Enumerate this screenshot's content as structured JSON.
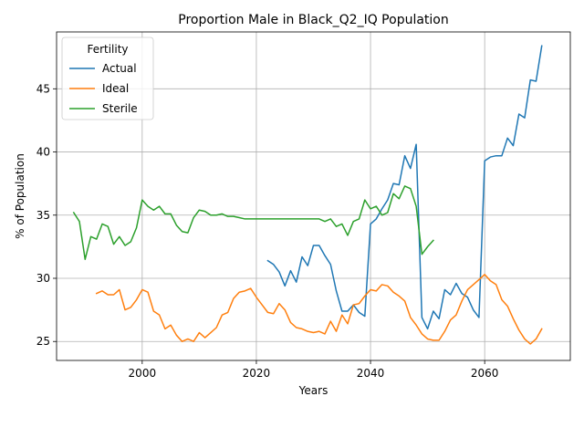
{
  "chart_data": {
    "type": "line",
    "title": "Proportion Male in Black_Q2_IQ Population",
    "xlabel": "Years",
    "ylabel": "% of Population",
    "xlim": [
      1985,
      2075
    ],
    "ylim": [
      23.5,
      49.5
    ],
    "xticks": [
      2000,
      2020,
      2040,
      2060
    ],
    "yticks": [
      25,
      30,
      35,
      40,
      45
    ],
    "grid": true,
    "legend": {
      "title": "Fertility",
      "position": "top-left"
    },
    "series": [
      {
        "name": "Actual",
        "color": "#1f77b4",
        "x": [
          2022,
          2023,
          2024,
          2025,
          2026,
          2027,
          2028,
          2029,
          2030,
          2031,
          2032,
          2033,
          2034,
          2035,
          2036,
          2037,
          2038,
          2039,
          2040,
          2041,
          2042,
          2043,
          2044,
          2045,
          2046,
          2047,
          2048,
          2049,
          2050,
          2051,
          2052,
          2053,
          2054,
          2055,
          2056,
          2057,
          2058,
          2059,
          2060,
          2061,
          2062,
          2063,
          2064,
          2065,
          2066,
          2067,
          2068,
          2069,
          2070
        ],
        "y": [
          31.4,
          31.1,
          30.5,
          29.4,
          30.6,
          29.7,
          31.7,
          31.0,
          32.6,
          32.6,
          31.8,
          31.1,
          29.0,
          27.4,
          27.4,
          27.9,
          27.3,
          27.0,
          34.3,
          34.7,
          35.5,
          36.2,
          37.5,
          37.4,
          39.7,
          38.7,
          40.6,
          26.9,
          26.0,
          27.4,
          26.8,
          29.1,
          28.7,
          29.6,
          28.8,
          28.5,
          27.5,
          26.9,
          39.3,
          39.6,
          39.7,
          39.7,
          41.1,
          40.5,
          43.0,
          42.7,
          45.7,
          45.6,
          48.4
        ]
      },
      {
        "name": "Ideal",
        "color": "#ff7f0e",
        "x": [
          1992,
          1993,
          1994,
          1995,
          1996,
          1997,
          1998,
          1999,
          2000,
          2001,
          2002,
          2003,
          2004,
          2005,
          2006,
          2007,
          2008,
          2009,
          2010,
          2011,
          2012,
          2013,
          2014,
          2015,
          2016,
          2017,
          2018,
          2019,
          2020,
          2021,
          2022,
          2023,
          2024,
          2025,
          2026,
          2027,
          2028,
          2029,
          2030,
          2031,
          2032,
          2033,
          2034,
          2035,
          2036,
          2037,
          2038,
          2039,
          2040,
          2041,
          2042,
          2043,
          2044,
          2045,
          2046,
          2047,
          2048,
          2049,
          2050,
          2051,
          2052,
          2053,
          2054,
          2055,
          2056,
          2057,
          2058,
          2059,
          2060,
          2061,
          2062,
          2063,
          2064,
          2065,
          2066,
          2067,
          2068,
          2069,
          2070
        ],
        "y": [
          28.8,
          29.0,
          28.7,
          28.7,
          29.1,
          27.5,
          27.7,
          28.3,
          29.1,
          28.9,
          27.4,
          27.1,
          26.0,
          26.3,
          25.5,
          25.0,
          25.2,
          25.0,
          25.7,
          25.3,
          25.7,
          26.1,
          27.1,
          27.3,
          28.4,
          28.9,
          29.0,
          29.2,
          28.5,
          27.9,
          27.3,
          27.2,
          28.0,
          27.5,
          26.5,
          26.1,
          26.0,
          25.8,
          25.7,
          25.8,
          25.6,
          26.6,
          25.8,
          27.1,
          26.4,
          27.9,
          28.0,
          28.6,
          29.1,
          29.0,
          29.5,
          29.4,
          28.9,
          28.6,
          28.2,
          26.9,
          26.3,
          25.6,
          25.2,
          25.1,
          25.1,
          25.8,
          26.7,
          27.1,
          28.2,
          29.1,
          29.5,
          29.9,
          30.3,
          29.8,
          29.5,
          28.3,
          27.8,
          26.8,
          25.9,
          25.2,
          24.8,
          25.2,
          26.0
        ]
      },
      {
        "name": "Sterile",
        "color": "#2ca02c",
        "x": [
          1988,
          1989,
          1990,
          1991,
          1992,
          1993,
          1994,
          1995,
          1996,
          1997,
          1998,
          1999,
          2000,
          2001,
          2002,
          2003,
          2004,
          2005,
          2006,
          2007,
          2008,
          2009,
          2010,
          2011,
          2012,
          2013,
          2014,
          2015,
          2016,
          2017,
          2018,
          2019,
          2020,
          2021,
          2022,
          2023,
          2024,
          2025,
          2026,
          2027,
          2028,
          2029,
          2030,
          2031,
          2032,
          2033,
          2034,
          2035,
          2036,
          2037,
          2038,
          2039,
          2040,
          2041,
          2042,
          2043,
          2044,
          2045,
          2046,
          2047,
          2048,
          2049,
          2050,
          2051
        ],
        "y": [
          35.2,
          34.5,
          31.5,
          33.3,
          33.1,
          34.3,
          34.1,
          32.7,
          33.3,
          32.6,
          32.9,
          34.0,
          36.2,
          35.7,
          35.4,
          35.7,
          35.1,
          35.1,
          34.2,
          33.7,
          33.6,
          34.8,
          35.4,
          35.3,
          35.0,
          35.0,
          35.1,
          34.9,
          34.9,
          34.8,
          34.7,
          34.7,
          34.7,
          34.7,
          34.7,
          34.7,
          34.7,
          34.7,
          34.7,
          34.7,
          34.7,
          34.7,
          34.7,
          34.7,
          34.5,
          34.7,
          34.1,
          34.3,
          33.4,
          34.5,
          34.7,
          36.2,
          35.5,
          35.7,
          35.0,
          35.2,
          36.7,
          36.3,
          37.3,
          37.1,
          35.7,
          31.9,
          32.5,
          33.0
        ]
      }
    ]
  }
}
